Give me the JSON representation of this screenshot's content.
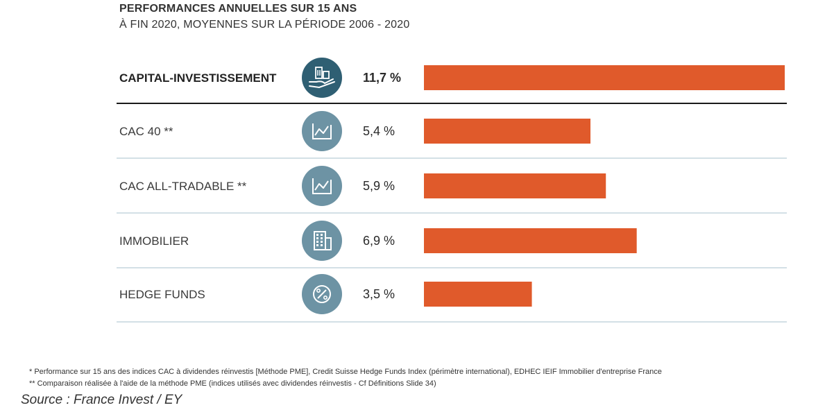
{
  "title": "PERFORMANCES ANNUELLES SUR 15 ANS",
  "subtitle": "À FIN 2020, MOYENNES SUR LA PÉRIODE 2006 - 2020",
  "colors": {
    "bar": "#e05a2b",
    "icon_circle_highlight": "#2f5f73",
    "icon_circle": "#6d93a4",
    "divider_highlight": "#1a1a1a",
    "divider": "#b9cdd8"
  },
  "chart_data": {
    "type": "bar",
    "orientation": "horizontal",
    "categories": [
      "CAPITAL-INVESTISSEMENT",
      "CAC 40 **",
      "CAC ALL-TRADABLE **",
      "IMMOBILIER",
      "HEDGE FUNDS"
    ],
    "values": [
      11.7,
      5.4,
      5.9,
      6.9,
      3.5
    ],
    "value_labels": [
      "11,7 %",
      "5,4 %",
      "5,9 %",
      "6,9 %",
      "3,5 %"
    ],
    "icons": [
      "investment-hand-icon",
      "line-chart-icon",
      "line-chart-icon",
      "building-icon",
      "percent-icon"
    ],
    "highlighted": [
      true,
      false,
      false,
      false,
      false
    ],
    "unit": "%",
    "xlim": [
      0,
      11.7
    ],
    "grid": false,
    "legend": "none"
  },
  "footnotes": [
    "* Performance sur 15 ans des indices CAC à dividendes réinvestis [Méthode PME], Credit Suisse Hedge Funds Index (périmètre international), EDHEC IEIF Immobilier d'entreprise France",
    "** Comparaison réalisée à l'aide de la méthode PME (indices utilisés avec dividendes réinvestis  - Cf Définitions Slide 34)"
  ],
  "source": "Source : France Invest / EY"
}
